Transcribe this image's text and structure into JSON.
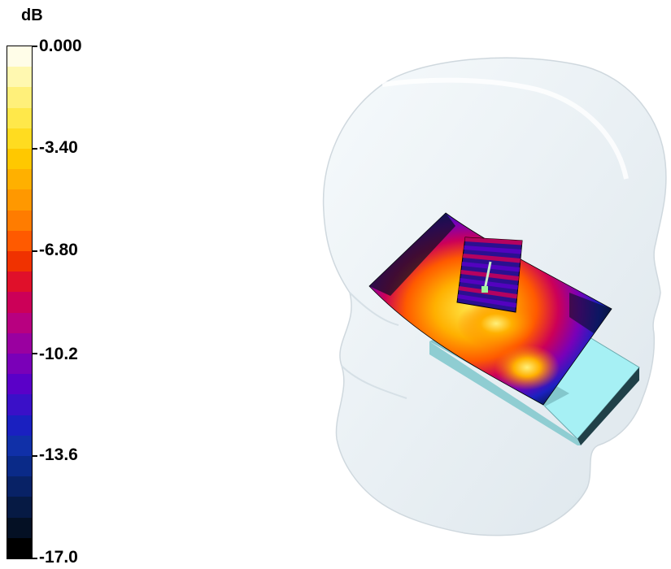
{
  "colorbar": {
    "unit": "dB",
    "labels": [
      "0.000",
      "-3.40",
      "-6.80",
      "-10.2",
      "-13.6",
      "-17.0"
    ],
    "range": [
      0.0,
      -17.0
    ],
    "colors": [
      "#fffde8",
      "#fff8b0",
      "#fff07a",
      "#ffe84a",
      "#ffdc20",
      "#ffc800",
      "#ffb000",
      "#ff9800",
      "#ff7c00",
      "#ff5a00",
      "#f03200",
      "#e0102a",
      "#cc0058",
      "#b80080",
      "#9a00a0",
      "#7a00b8",
      "#5a00c8",
      "#3a10c8",
      "#1a20c0",
      "#1030a8",
      "#0a2a88",
      "#082266",
      "#061a44",
      "#041024",
      "#000000"
    ]
  },
  "scene": {
    "head_color": "#eef4f8",
    "device_color": "#a6f0f4",
    "feed_color": "#9cf59c"
  }
}
